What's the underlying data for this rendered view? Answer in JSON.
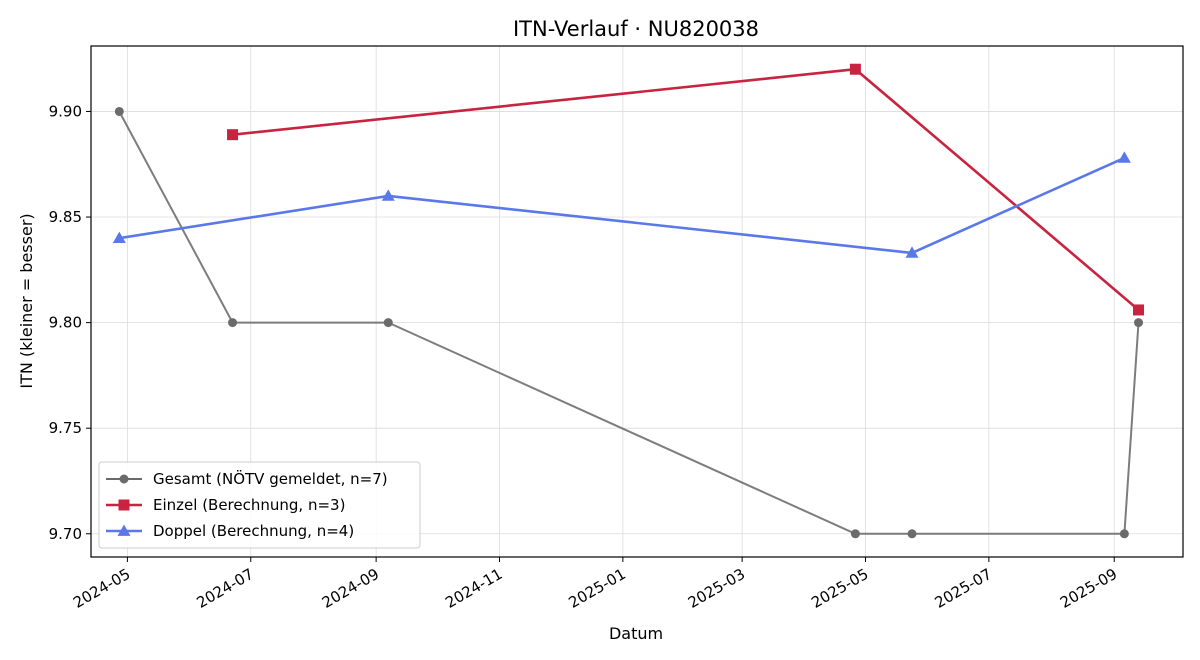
{
  "chart_data": {
    "type": "line",
    "title": "ITN-Verlauf · NU820038",
    "xlabel": "Datum",
    "ylabel": "ITN  (kleiner = besser)",
    "x_type": "date",
    "xlim": [
      "2024-04-13",
      "2025-10-05"
    ],
    "ylim": [
      9.689,
      9.931
    ],
    "x_ticks": [
      "2024-05",
      "2024-07",
      "2024-09",
      "2024-11",
      "2025-01",
      "2025-03",
      "2025-05",
      "2025-07",
      "2025-09"
    ],
    "y_ticks": [
      9.7,
      9.75,
      9.8,
      9.85,
      9.9
    ],
    "grid": true,
    "legend_position": "lower-left",
    "series": [
      {
        "name": "Gesamt (NÖTV gemeldet, n=7)",
        "color": "#6b6b6b",
        "marker": "circle",
        "points": [
          {
            "x": "2024-04-27",
            "y": 9.9
          },
          {
            "x": "2024-06-22",
            "y": 9.8
          },
          {
            "x": "2024-09-07",
            "y": 9.8
          },
          {
            "x": "2025-04-26",
            "y": 9.7
          },
          {
            "x": "2025-05-24",
            "y": 9.7
          },
          {
            "x": "2025-09-06",
            "y": 9.7
          },
          {
            "x": "2025-09-13",
            "y": 9.8
          }
        ]
      },
      {
        "name": "Einzel (Berechnung, n=3)",
        "color": "#c8233f",
        "marker": "square",
        "points": [
          {
            "x": "2024-06-22",
            "y": 9.889
          },
          {
            "x": "2025-04-26",
            "y": 9.92
          },
          {
            "x": "2025-09-13",
            "y": 9.806
          }
        ]
      },
      {
        "name": "Doppel (Berechnung, n=4)",
        "color": "#5a78ea",
        "marker": "triangle",
        "points": [
          {
            "x": "2024-04-27",
            "y": 9.84
          },
          {
            "x": "2024-09-07",
            "y": 9.86
          },
          {
            "x": "2025-05-24",
            "y": 9.833
          },
          {
            "x": "2025-09-06",
            "y": 9.878
          }
        ]
      }
    ]
  }
}
